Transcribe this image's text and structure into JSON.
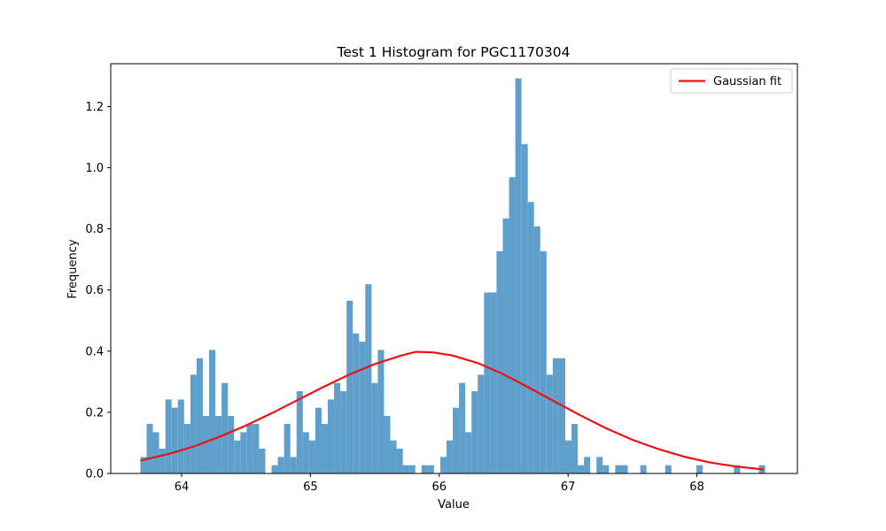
{
  "chart_data": {
    "type": "histogram",
    "title": "Test 1 Histogram for PGC1170304",
    "xlabel": "Value",
    "ylabel": "Frequency",
    "xlim": [
      63.45,
      68.78
    ],
    "ylim": [
      0,
      1.34
    ],
    "x_ticks": [
      64,
      65,
      66,
      67,
      68
    ],
    "y_ticks": [
      0.0,
      0.2,
      0.4,
      0.6,
      0.8,
      1.0,
      1.2
    ],
    "x_tick_labels": [
      "64",
      "65",
      "66",
      "67",
      "68"
    ],
    "y_tick_labels": [
      "0.0",
      "0.2",
      "0.4",
      "0.6",
      "0.8",
      "1.0",
      "1.2"
    ],
    "bins": {
      "start": 63.68,
      "width": 0.0485,
      "values": [
        0.054,
        0.162,
        0.135,
        0.081,
        0.242,
        0.215,
        0.242,
        0.162,
        0.323,
        0.377,
        0.188,
        0.404,
        0.188,
        0.296,
        0.188,
        0.108,
        0.135,
        0.162,
        0.162,
        0.081,
        0,
        0.027,
        0.054,
        0.162,
        0.054,
        0.269,
        0.135,
        0.108,
        0.215,
        0.162,
        0.242,
        0.296,
        0.269,
        0.565,
        0.458,
        0.431,
        0.619,
        0.296,
        0.404,
        0.188,
        0.108,
        0.081,
        0.027,
        0.027,
        0,
        0.027,
        0.027,
        0,
        0.054,
        0.108,
        0.215,
        0.296,
        0.135,
        0.269,
        0.323,
        0.592,
        0.592,
        0.727,
        0.834,
        0.969,
        1.292,
        1.077,
        0.888,
        0.808,
        0.727,
        0.323,
        0.377,
        0.377,
        0.108,
        0.162,
        0.027,
        0.054,
        0,
        0.054,
        0.027,
        0,
        0.027,
        0.027,
        0,
        0,
        0.027,
        0,
        0,
        0,
        0.027,
        0,
        0,
        0,
        0,
        0.027,
        0,
        0,
        0,
        0,
        0,
        0.027,
        0,
        0,
        0,
        0.027
      ],
      "color": "#5f9fcc"
    },
    "series": [
      {
        "name": "Gaussian fit",
        "type": "line",
        "color": "#ee1111",
        "x": [
          63.68,
          63.9,
          64.1,
          64.3,
          64.5,
          64.7,
          64.9,
          65.1,
          65.3,
          65.5,
          65.7,
          65.82,
          65.95,
          66.1,
          66.3,
          66.5,
          66.7,
          66.9,
          67.1,
          67.3,
          67.5,
          67.7,
          67.9,
          68.1,
          68.3,
          68.52
        ],
        "y": [
          0.042,
          0.064,
          0.089,
          0.121,
          0.157,
          0.197,
          0.24,
          0.283,
          0.323,
          0.358,
          0.385,
          0.398,
          0.396,
          0.386,
          0.361,
          0.324,
          0.28,
          0.234,
          0.189,
          0.147,
          0.11,
          0.08,
          0.055,
          0.036,
          0.023,
          0.013
        ]
      }
    ],
    "legend": {
      "position": "top-right",
      "entries": [
        "Gaussian fit"
      ]
    },
    "grid": false
  }
}
